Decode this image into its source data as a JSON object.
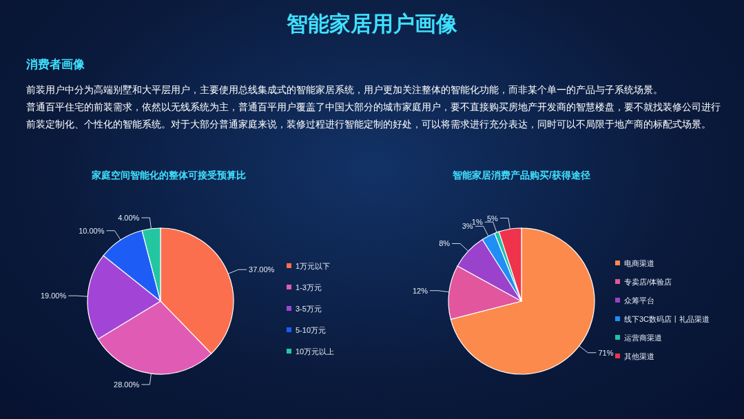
{
  "chart_data": [
    {
      "type": "pie",
      "title": "家庭空间智能化的整体可接受预算比",
      "categories": [
        "1万元以下",
        "1-3万元",
        "3-5万元",
        "5-10万元",
        "10万元以上"
      ],
      "values": [
        37,
        28,
        19,
        10,
        4
      ],
      "value_labels": [
        "37.00%",
        "28.00%",
        "19.00%",
        "10.00%",
        "4.00%"
      ],
      "colors": [
        "#fc6f4e",
        "#e05cb4",
        "#a245d6",
        "#1d5df5",
        "#22c7a2"
      ],
      "legend": "right",
      "annotations": [
        "智能家居用户画像",
        "消费者画像",
        "前装用户中分为高端别墅和大平层用户，主要使用总线集成式的智能家居系统，用户更加关注整体的智能化功能，而非某个单一的产品与子系统场景。",
        "普通百平住宅的前装需求，依然以无线系统为主，普通百平用户覆盖了中国大部分的城市家庭用户，要不直接购买房地产开发商的智慧楼盘，要不就找装修公司进行前装定制化、个性化的智能系统。对于大部分普通家庭来说，装修过程进行智能定制的好处，可以将需求进行充分表达，同时可以不局限于地产商的标配式场景。"
      ]
    },
    {
      "type": "pie",
      "title": "智能家居消费产品购买/获得途径",
      "categories": [
        "电商渠道",
        "专卖店/体验店",
        "众筹平台",
        "线下3C数码店丨礼品渠道",
        "运营商渠道",
        "其他渠道"
      ],
      "values": [
        71,
        12,
        8,
        3,
        1,
        5
      ],
      "value_labels": [
        "71%",
        "12%",
        "8%",
        "3%",
        "1%",
        "5%"
      ],
      "colors": [
        "#fb8a4c",
        "#e2569e",
        "#9a42cc",
        "#1f8ef5",
        "#1fc2a6",
        "#f0334c"
      ],
      "legend": "right"
    }
  ]
}
